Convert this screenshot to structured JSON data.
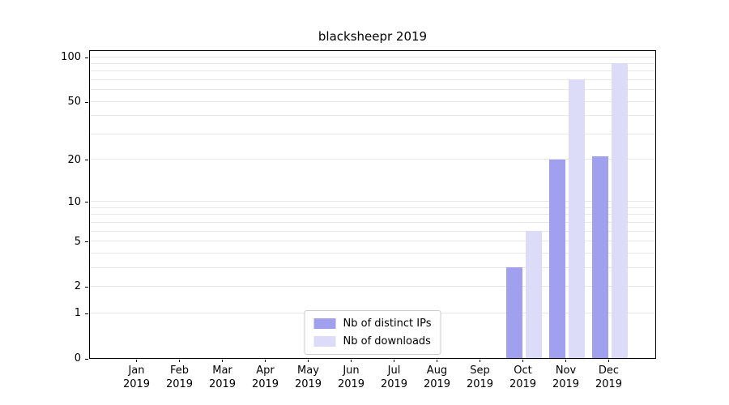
{
  "chart_data": {
    "type": "bar",
    "title": "blacksheepr 2019",
    "categories": [
      "Jan 2019",
      "Feb 2019",
      "Mar 2019",
      "Apr 2019",
      "May 2019",
      "Jun 2019",
      "Jul 2019",
      "Aug 2019",
      "Sep 2019",
      "Oct 2019",
      "Nov 2019",
      "Dec 2019"
    ],
    "series": [
      {
        "name": "Nb of distinct IPs",
        "color": "#a0a0ef",
        "values": [
          0,
          0,
          0,
          0,
          0,
          0,
          0,
          0,
          0,
          3,
          20,
          21
        ]
      },
      {
        "name": "Nb of downloads",
        "color": "#dcdcf9",
        "values": [
          0,
          0,
          0,
          0,
          0,
          0,
          0,
          0,
          0,
          6,
          70,
          90
        ]
      }
    ],
    "xlabel": "",
    "ylabel": "",
    "yscale": "log1p",
    "ylim": [
      0,
      100
    ],
    "y_ticks": [
      0,
      1,
      2,
      5,
      10,
      20,
      50,
      100
    ],
    "gridline_values": [
      1,
      2,
      3,
      4,
      5,
      6,
      7,
      8,
      9,
      10,
      20,
      30,
      40,
      50,
      60,
      70,
      80,
      90,
      100
    ],
    "legend_position": "lower center",
    "grid": true,
    "colors": {
      "grid": "#e7e7e7",
      "axis": "#000000",
      "background": "#ffffff"
    }
  }
}
